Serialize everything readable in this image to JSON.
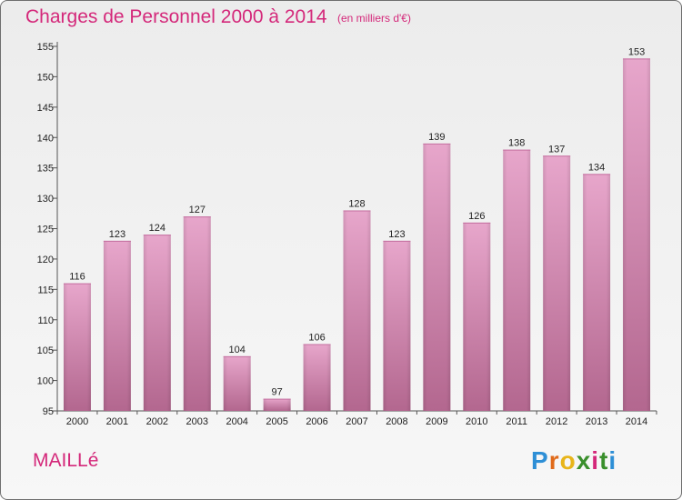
{
  "title": "Charges de Personnel 2000 à 2014",
  "subtitle": "(en milliers d'€)",
  "commune": "MAILLé",
  "logo": {
    "letters": [
      "P",
      "r",
      "o",
      "x",
      "i",
      "t",
      "i"
    ],
    "colors": [
      "#2e8fd6",
      "#e06a1a",
      "#e8b51a",
      "#3a8f2c",
      "#d4287a",
      "#3a8f2c",
      "#2e8fd6"
    ]
  },
  "colors": {
    "bar": "#d98bb8",
    "title": "#d4287a"
  },
  "chart_data": {
    "type": "bar",
    "categories": [
      "2000",
      "2001",
      "2002",
      "2003",
      "2004",
      "2005",
      "2006",
      "2007",
      "2008",
      "2009",
      "2010",
      "2011",
      "2012",
      "2013",
      "2014"
    ],
    "values": [
      116,
      123,
      124,
      127,
      104,
      97,
      106,
      128,
      123,
      139,
      126,
      138,
      137,
      134,
      153
    ],
    "ylim": [
      95,
      155
    ],
    "yticks": [
      95,
      100,
      105,
      110,
      115,
      120,
      125,
      130,
      135,
      140,
      145,
      150,
      155
    ],
    "grid": false,
    "data_labels": true
  }
}
